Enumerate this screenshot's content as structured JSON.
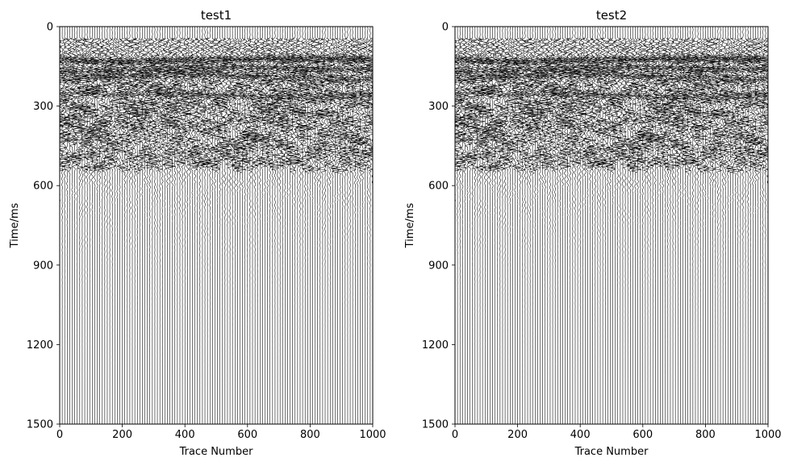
{
  "chart_data": [
    {
      "type": "seismic-wiggle",
      "title": "test1",
      "xlabel": "Trace Number",
      "ylabel": "Time/ms",
      "xlim": [
        0,
        1000
      ],
      "ylim": [
        1500,
        0
      ],
      "y_inverted": true,
      "xticks": [
        0,
        200,
        400,
        600,
        800,
        1000
      ],
      "yticks": [
        0,
        300,
        600,
        900,
        1200,
        1500
      ],
      "grid": false,
      "legend": "none",
      "trace_color": "#000000",
      "trace_spacing": 8,
      "first_arrival_ms": 50,
      "strong_events_ms": [
        125,
        160,
        190,
        260
      ],
      "energy_fade_ms": 600
    },
    {
      "type": "seismic-wiggle",
      "title": "test2",
      "xlabel": "Trace Number",
      "ylabel": "Time/ms",
      "xlim": [
        0,
        1000
      ],
      "ylim": [
        1500,
        0
      ],
      "y_inverted": true,
      "xticks": [
        0,
        200,
        400,
        600,
        800,
        1000
      ],
      "yticks": [
        0,
        300,
        600,
        900,
        1200,
        1500
      ],
      "grid": false,
      "legend": "none",
      "trace_color": "#000000",
      "trace_spacing": 8,
      "first_arrival_ms": 50,
      "strong_events_ms": [
        125,
        160,
        190,
        260
      ],
      "energy_fade_ms": 600
    }
  ]
}
